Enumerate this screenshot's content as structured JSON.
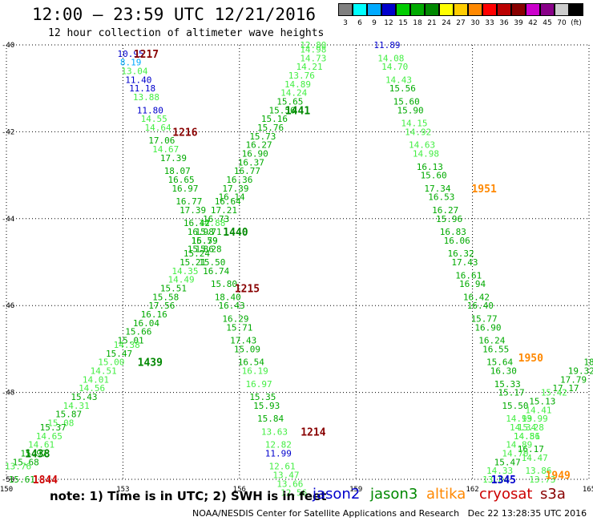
{
  "title": "12:00 – 23:59 UTC 12/21/2016",
  "subtitle": "12 hour collection of altimeter wave heights",
  "colorbar": {
    "colors": [
      "#808080",
      "#00ffff",
      "#00aaff",
      "#0000cc",
      "#00cc00",
      "#00aa00",
      "#008800",
      "#ffff00",
      "#ffcc00",
      "#ff8800",
      "#ff0000",
      "#bb0000",
      "#880000",
      "#cc00cc",
      "#880088",
      "#cccccc",
      "#000000"
    ],
    "labels": [
      "3",
      "6",
      "9",
      "12",
      "15",
      "18",
      "21",
      "24",
      "27",
      "30",
      "33",
      "36",
      "39",
      "42",
      "45",
      "70",
      "(ft)"
    ]
  },
  "note": "note: 1) Time is in UTC; 2) SWH is in feet",
  "satellites": [
    {
      "name": "jason2",
      "color": "#0000cc"
    },
    {
      "name": "jason3",
      "color": "#008800"
    },
    {
      "name": "altika",
      "color": "#ff8800"
    },
    {
      "name": "cryosat",
      "color": "#cc0000"
    },
    {
      "name": "s3a",
      "color": "#880000"
    }
  ],
  "credit": "NOAA/NESDIS Center for Satellite Applications and Research   Dec 22 13:28:35 UTC 2016",
  "chart_data": {
    "type": "scatter",
    "xlim": [
      150,
      165
    ],
    "ylim": [
      -50,
      -40
    ],
    "x_ticks": [
      "150",
      "153",
      "156",
      "159",
      "162",
      "165"
    ],
    "y_ticks": [
      "-40",
      "-42",
      "-44",
      "-46",
      "-48",
      "-50"
    ],
    "grid": true,
    "pass_labels": [
      {
        "text": "1217",
        "x": 153.6,
        "y": -40.2,
        "color": "#880000"
      },
      {
        "text": "1216",
        "x": 154.6,
        "y": -42.0,
        "color": "#880000"
      },
      {
        "text": "1215",
        "x": 156.2,
        "y": -45.6,
        "color": "#880000"
      },
      {
        "text": "1214",
        "x": 157.9,
        "y": -48.9,
        "color": "#880000"
      },
      {
        "text": "1441",
        "x": 157.5,
        "y": -41.5,
        "color": "#008800"
      },
      {
        "text": "1440",
        "x": 155.9,
        "y": -44.3,
        "color": "#008800"
      },
      {
        "text": "1439",
        "x": 153.7,
        "y": -47.3,
        "color": "#008800"
      },
      {
        "text": "1438",
        "x": 150.8,
        "y": -49.4,
        "color": "#008800"
      },
      {
        "text": "1844",
        "x": 151.0,
        "y": -50.0,
        "color": "#cc0000"
      },
      {
        "text": "1951",
        "x": 162.3,
        "y": -43.3,
        "color": "#ff8800"
      },
      {
        "text": "1950",
        "x": 163.5,
        "y": -47.2,
        "color": "#ff8800"
      },
      {
        "text": "1949",
        "x": 164.2,
        "y": -49.9,
        "color": "#ff8800"
      },
      {
        "text": "1345",
        "x": 162.8,
        "y": -50.0,
        "color": "#0000cc"
      }
    ],
    "series": [
      {
        "points": [
          [
            157.9,
            -40.0,
            "12.80"
          ],
          [
            157.9,
            -40.1,
            "14.98"
          ],
          [
            157.9,
            -40.3,
            "14.73"
          ],
          [
            157.8,
            -40.5,
            "14.21"
          ],
          [
            157.6,
            -40.7,
            "13.76"
          ],
          [
            157.5,
            -40.9,
            "14.89"
          ],
          [
            157.4,
            -41.1,
            "14.24"
          ],
          [
            157.3,
            -41.3,
            "15.65"
          ],
          [
            157.1,
            -41.5,
            "15.56"
          ],
          [
            156.9,
            -41.7,
            "15.16"
          ],
          [
            156.8,
            -41.9,
            "15.76"
          ],
          [
            156.6,
            -42.1,
            "15.73"
          ],
          [
            156.5,
            -42.3,
            "16.27"
          ],
          [
            156.4,
            -42.5,
            "16.90"
          ],
          [
            156.3,
            -42.7,
            "16.37"
          ],
          [
            156.2,
            -42.9,
            "16.77"
          ],
          [
            156.0,
            -43.1,
            "16.36"
          ],
          [
            155.9,
            -43.3,
            "17.39"
          ],
          [
            155.8,
            -43.5,
            "16.14"
          ],
          [
            155.7,
            -43.6,
            "16.64"
          ],
          [
            155.6,
            -43.8,
            "17.21"
          ],
          [
            155.4,
            -44.0,
            "16.73"
          ],
          [
            155.3,
            -44.1,
            "14.88"
          ],
          [
            155.2,
            -44.3,
            "15.71"
          ],
          [
            155.1,
            -44.5,
            "16.59"
          ],
          [
            155.0,
            -44.7,
            "15.86"
          ],
          [
            154.9,
            -44.8,
            "15.24"
          ],
          [
            154.8,
            -45.0,
            "15.21"
          ],
          [
            154.6,
            -45.2,
            "14.35"
          ],
          [
            154.5,
            -45.4,
            "14.49"
          ],
          [
            154.3,
            -45.6,
            "15.51"
          ],
          [
            154.1,
            -45.8,
            "15.58"
          ],
          [
            154.0,
            -46.0,
            "17.56"
          ],
          [
            153.8,
            -46.2,
            "16.16"
          ],
          [
            153.6,
            -46.4,
            "16.04"
          ],
          [
            153.4,
            -46.6,
            "15.66"
          ],
          [
            153.2,
            -46.8,
            "15.01"
          ],
          [
            153.1,
            -46.9,
            "14.38"
          ],
          [
            152.9,
            -47.1,
            "15.47"
          ],
          [
            152.7,
            -47.3,
            "15.00"
          ],
          [
            152.5,
            -47.5,
            "14.51"
          ],
          [
            152.3,
            -47.7,
            "14.01"
          ],
          [
            152.2,
            -47.9,
            "14.56"
          ],
          [
            152.0,
            -48.1,
            "15.43"
          ],
          [
            151.8,
            -48.3,
            "14.31"
          ],
          [
            151.6,
            -48.5,
            "15.87"
          ],
          [
            151.4,
            -48.7,
            "15.08"
          ],
          [
            151.2,
            -48.8,
            "15.37"
          ],
          [
            151.1,
            -49.0,
            "14.65"
          ],
          [
            150.9,
            -49.2,
            "14.61"
          ],
          [
            150.7,
            -49.4,
            "15.97"
          ],
          [
            150.5,
            -49.6,
            "15.68"
          ]
        ],
        "colors": [
          "#44ee44",
          "#44ee44",
          "#44ee44",
          "#44ee44",
          "#44ee44",
          "#44ee44",
          "#44ee44",
          "#00aa00",
          "#00aa00",
          "#00aa00",
          "#00aa00",
          "#00aa00",
          "#00aa00",
          "#00aa00",
          "#00aa00",
          "#00aa00",
          "#00aa00",
          "#00aa00",
          "#00aa00",
          "#00aa00",
          "#00aa00",
          "#00aa00",
          "#44ee44",
          "#00aa00",
          "#00aa00",
          "#00aa00",
          "#00aa00",
          "#00aa00",
          "#44ee44",
          "#44ee44",
          "#00aa00",
          "#00aa00",
          "#00aa00",
          "#00aa00",
          "#00aa00",
          "#00aa00",
          "#00aa00",
          "#44ee44",
          "#00aa00",
          "#44ee44",
          "#44ee44",
          "#44ee44",
          "#44ee44",
          "#00aa00",
          "#44ee44",
          "#00aa00",
          "#44ee44",
          "#00aa00",
          "#44ee44",
          "#44ee44",
          "#00aa00",
          "#00aa00"
        ]
      },
      {
        "points": [
          [
            153.2,
            -40.2,
            "10.95"
          ],
          [
            153.2,
            -40.4,
            "8.19"
          ],
          [
            153.3,
            -40.6,
            "13.04"
          ],
          [
            153.4,
            -40.8,
            "11.40"
          ],
          [
            153.5,
            -41.0,
            "11.18"
          ],
          [
            153.6,
            -41.2,
            "13.88"
          ],
          [
            153.7,
            -41.5,
            "11.80"
          ],
          [
            153.8,
            -41.7,
            "14.55"
          ],
          [
            153.9,
            -41.9,
            "14.64"
          ],
          [
            154.0,
            -42.2,
            "17.06"
          ],
          [
            154.1,
            -42.4,
            "14.67"
          ],
          [
            154.3,
            -42.6,
            "17.39"
          ],
          [
            154.4,
            -42.9,
            "18.07"
          ],
          [
            154.5,
            -43.1,
            "16.65"
          ],
          [
            154.6,
            -43.3,
            "16.97"
          ],
          [
            154.7,
            -43.6,
            "16.77"
          ],
          [
            154.8,
            -43.8,
            "17.39"
          ],
          [
            154.9,
            -44.1,
            "16.42"
          ],
          [
            155.0,
            -44.3,
            "16.98"
          ],
          [
            155.1,
            -44.5,
            "15.79"
          ],
          [
            155.2,
            -44.7,
            "15.28"
          ],
          [
            155.3,
            -45.0,
            "15.50"
          ],
          [
            155.4,
            -45.2,
            "16.74"
          ],
          [
            155.6,
            -45.5,
            "15.80"
          ],
          [
            155.7,
            -45.8,
            "18.40"
          ],
          [
            155.8,
            -46.0,
            "16.43"
          ],
          [
            155.9,
            -46.3,
            "16.29"
          ],
          [
            156.0,
            -46.5,
            "15.71"
          ],
          [
            156.1,
            -46.8,
            "17.43"
          ],
          [
            156.2,
            -47.0,
            "15.09"
          ],
          [
            156.3,
            -47.3,
            "16.54"
          ],
          [
            156.4,
            -47.5,
            "16.19"
          ],
          [
            156.5,
            -47.8,
            "16.97"
          ],
          [
            156.6,
            -48.1,
            "15.35"
          ],
          [
            156.7,
            -48.3,
            "15.93"
          ],
          [
            156.8,
            -48.6,
            "15.84"
          ],
          [
            156.9,
            -48.9,
            "13.63"
          ],
          [
            157.0,
            -49.2,
            "12.82"
          ],
          [
            157.0,
            -49.4,
            "11.99"
          ],
          [
            157.1,
            -49.7,
            "12.61"
          ],
          [
            157.2,
            -49.9,
            "13.47"
          ],
          [
            157.3,
            -50.1,
            "13.66"
          ],
          [
            157.4,
            -50.3,
            "12.56"
          ]
        ],
        "colors": [
          "#0000cc",
          "#00aaff",
          "#44ee44",
          "#0000cc",
          "#0000cc",
          "#44ee44",
          "#0000cc",
          "#44ee44",
          "#44ee44",
          "#00aa00",
          "#44ee44",
          "#00aa00",
          "#00aa00",
          "#00aa00",
          "#00aa00",
          "#00aa00",
          "#00aa00",
          "#00aa00",
          "#00aa00",
          "#00aa00",
          "#00aa00",
          "#00aa00",
          "#00aa00",
          "#00aa00",
          "#00aa00",
          "#00aa00",
          "#00aa00",
          "#00aa00",
          "#00aa00",
          "#00aa00",
          "#00aa00",
          "#44ee44",
          "#44ee44",
          "#00aa00",
          "#00aa00",
          "#00aa00",
          "#44ee44",
          "#44ee44",
          "#0000cc",
          "#44ee44",
          "#44ee44",
          "#44ee44",
          "#44ee44"
        ]
      },
      {
        "points": [
          [
            159.8,
            -40.0,
            "11.89"
          ],
          [
            159.9,
            -40.3,
            "14.08"
          ],
          [
            160.0,
            -40.5,
            "14.70"
          ],
          [
            160.1,
            -40.8,
            "14.43"
          ],
          [
            160.2,
            -41.0,
            "15.56"
          ],
          [
            160.3,
            -41.3,
            "15.60"
          ],
          [
            160.4,
            -41.5,
            "15.90"
          ],
          [
            160.5,
            -41.8,
            "14.15"
          ],
          [
            160.6,
            -42.0,
            "14.92"
          ],
          [
            160.7,
            -42.3,
            "14.63"
          ],
          [
            160.8,
            -42.5,
            "14.98"
          ],
          [
            160.9,
            -42.8,
            "16.13"
          ],
          [
            161.0,
            -43.0,
            "15.60"
          ],
          [
            161.1,
            -43.3,
            "17.34"
          ],
          [
            161.2,
            -43.5,
            "16.53"
          ],
          [
            161.3,
            -43.8,
            "16.27"
          ],
          [
            161.4,
            -44.0,
            "15.96"
          ],
          [
            161.5,
            -44.3,
            "16.83"
          ],
          [
            161.6,
            -44.5,
            "16.06"
          ],
          [
            161.7,
            -44.8,
            "16.32"
          ],
          [
            161.8,
            -45.0,
            "17.43"
          ],
          [
            161.9,
            -45.3,
            "16.61"
          ],
          [
            162.0,
            -45.5,
            "16.94"
          ],
          [
            162.1,
            -45.8,
            "16.42"
          ],
          [
            162.2,
            -46.0,
            "16.40"
          ],
          [
            162.3,
            -46.3,
            "15.77"
          ],
          [
            162.4,
            -46.5,
            "16.90"
          ],
          [
            162.5,
            -46.8,
            "16.24"
          ],
          [
            162.6,
            -47.0,
            "16.55"
          ],
          [
            162.7,
            -47.3,
            "15.64"
          ],
          [
            162.8,
            -47.5,
            "16.30"
          ],
          [
            162.9,
            -47.8,
            "15.33"
          ],
          [
            163.0,
            -48.0,
            "15.17"
          ],
          [
            163.1,
            -48.3,
            "15.50"
          ],
          [
            163.2,
            -48.6,
            "14.99"
          ],
          [
            163.3,
            -48.8,
            "14.34"
          ],
          [
            163.4,
            -49.0,
            "14.56"
          ],
          [
            163.5,
            -49.3,
            "16.17"
          ],
          [
            163.6,
            -49.5,
            "14.47"
          ],
          [
            163.7,
            -49.8,
            "13.86"
          ],
          [
            163.8,
            -50.0,
            "13.73"
          ]
        ],
        "colors": [
          "#0000cc",
          "#44ee44",
          "#44ee44",
          "#44ee44",
          "#00aa00",
          "#00aa00",
          "#00aa00",
          "#44ee44",
          "#44ee44",
          "#44ee44",
          "#44ee44",
          "#00aa00",
          "#00aa00",
          "#00aa00",
          "#00aa00",
          "#00aa00",
          "#00aa00",
          "#00aa00",
          "#00aa00",
          "#00aa00",
          "#00aa00",
          "#00aa00",
          "#00aa00",
          "#00aa00",
          "#00aa00",
          "#00aa00",
          "#00aa00",
          "#00aa00",
          "#00aa00",
          "#00aa00",
          "#00aa00",
          "#00aa00",
          "#00aa00",
          "#00aa00",
          "#44ee44",
          "#44ee44",
          "#44ee44",
          "#00aa00",
          "#44ee44",
          "#44ee44",
          "#44ee44"
        ]
      },
      {
        "points": [
          [
            165.0,
            -47.3,
            "18"
          ],
          [
            164.8,
            -47.5,
            "19.32"
          ],
          [
            164.6,
            -47.7,
            "17.79"
          ],
          [
            164.4,
            -47.9,
            "17.17"
          ],
          [
            164.1,
            -48.0,
            "15.42"
          ],
          [
            163.8,
            -48.2,
            "15.13"
          ],
          [
            163.7,
            -48.4,
            "14.41"
          ],
          [
            163.6,
            -48.6,
            "13.99"
          ],
          [
            163.5,
            -48.8,
            "15.28"
          ],
          [
            163.4,
            -49.0,
            "14.81"
          ],
          [
            163.2,
            -49.2,
            "14.89"
          ],
          [
            163.1,
            -49.4,
            "14.70"
          ],
          [
            162.9,
            -49.6,
            "15.47"
          ],
          [
            162.7,
            -49.8,
            "14.33"
          ],
          [
            162.6,
            -50.0,
            "13.84"
          ]
        ],
        "colors": [
          "#00aa00",
          "#00aa00",
          "#00aa00",
          "#00aa00",
          "#44ee44",
          "#00aa00",
          "#44ee44",
          "#44ee44",
          "#44ee44",
          "#44ee44",
          "#44ee44",
          "#44ee44",
          "#00aa00",
          "#44ee44",
          "#44ee44"
        ]
      },
      {
        "points": [
          [
            150.3,
            -49.7,
            "13.76"
          ],
          [
            150.4,
            -50.0,
            "15.61"
          ]
        ],
        "colors": [
          "#44ee44",
          "#00aa00"
        ]
      }
    ]
  }
}
